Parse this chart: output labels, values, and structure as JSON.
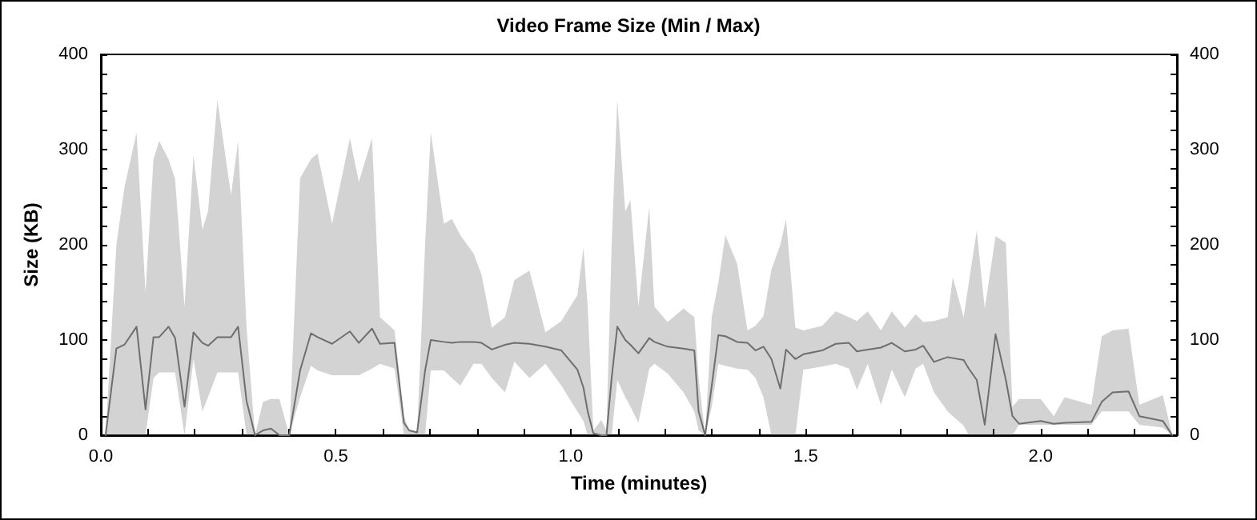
{
  "chart_data": {
    "type": "line",
    "title": "Video Frame Size (Min / Max)",
    "xlabel": "Time (minutes)",
    "ylabel": "Size (KB)",
    "xlim": [
      0,
      2.29
    ],
    "xticks": [
      {
        "value": 0,
        "label": "0.0"
      },
      {
        "value": 0.1,
        "label": null
      },
      {
        "value": 0.2,
        "label": null
      },
      {
        "value": 0.3,
        "label": null
      },
      {
        "value": 0.4,
        "label": null
      },
      {
        "value": 0.5,
        "label": "0.5"
      },
      {
        "value": 0.6,
        "label": null
      },
      {
        "value": 0.7,
        "label": null
      },
      {
        "value": 0.8,
        "label": null
      },
      {
        "value": 0.9,
        "label": null
      },
      {
        "value": 1,
        "label": "1.0"
      },
      {
        "value": 1.1,
        "label": null
      },
      {
        "value": 1.2,
        "label": null
      },
      {
        "value": 1.3,
        "label": null
      },
      {
        "value": 1.4,
        "label": null
      },
      {
        "value": 1.5,
        "label": "1.5"
      },
      {
        "value": 1.6,
        "label": null
      },
      {
        "value": 1.7,
        "label": null
      },
      {
        "value": 1.8,
        "label": null
      },
      {
        "value": 1.9,
        "label": null
      },
      {
        "value": 2,
        "label": "2.0"
      },
      {
        "value": 2.1,
        "label": null
      },
      {
        "value": 2.2,
        "label": null
      }
    ],
    "ylim": [
      0,
      400
    ],
    "yticks": [
      0,
      {
        "value": 20,
        "label": null
      },
      {
        "value": 40,
        "label": null
      },
      {
        "value": 60,
        "label": null
      },
      {
        "value": 80,
        "label": null
      },
      100,
      {
        "value": 120,
        "label": null
      },
      {
        "value": 140,
        "label": null
      },
      {
        "value": 160,
        "label": null
      },
      {
        "value": 180,
        "label": null
      },
      200,
      {
        "value": 220,
        "label": null
      },
      {
        "value": 240,
        "label": null
      },
      {
        "value": 260,
        "label": null
      },
      {
        "value": 280,
        "label": null
      },
      300,
      {
        "value": 320,
        "label": null
      },
      {
        "value": 340,
        "label": null
      },
      {
        "value": 360,
        "label": null
      },
      {
        "value": 380,
        "label": null
      },
      400
    ],
    "y2lim": [
      0,
      400
    ],
    "y2ticks": [
      0,
      {
        "value": 20,
        "label": null
      },
      {
        "value": 40,
        "label": null
      },
      {
        "value": 60,
        "label": null
      },
      {
        "value": 80,
        "label": null
      },
      100,
      {
        "value": 120,
        "label": null
      },
      {
        "value": 140,
        "label": null
      },
      {
        "value": 160,
        "label": null
      },
      {
        "value": 180,
        "label": null
      },
      200,
      {
        "value": 220,
        "label": null
      },
      {
        "value": 240,
        "label": null
      },
      {
        "value": 260,
        "label": null
      },
      {
        "value": 280,
        "label": null
      },
      300,
      {
        "value": 320,
        "label": null
      },
      {
        "value": 340,
        "label": null
      },
      {
        "value": 360,
        "label": null
      },
      {
        "value": 380,
        "label": null
      },
      400
    ],
    "grid": false,
    "marker": "none",
    "line_style": "solid",
    "series": [
      {
        "color": "#6e6e6e",
        "x": [
          0.01,
          0.033,
          0.05,
          0.076,
          0.095,
          0.112,
          0.124,
          0.144,
          0.158,
          0.178,
          0.197,
          0.216,
          0.228,
          0.248,
          0.277,
          0.292,
          0.31,
          0.328,
          0.345,
          0.362,
          0.38,
          0.401,
          0.424,
          0.447,
          0.461,
          0.492,
          0.53,
          0.549,
          0.577,
          0.594,
          0.625,
          0.645,
          0.656,
          0.673,
          0.69,
          0.702,
          0.73,
          0.747,
          0.765,
          0.793,
          0.81,
          0.832,
          0.86,
          0.88,
          0.912,
          0.946,
          0.98,
          1.014,
          1.027,
          1.036,
          1.048,
          1.065,
          1.076,
          1.087,
          1.099,
          1.116,
          1.127,
          1.144,
          1.167,
          1.178,
          1.206,
          1.24,
          1.263,
          1.272,
          1.286,
          1.3,
          1.314,
          1.329,
          1.354,
          1.376,
          1.393,
          1.41,
          1.427,
          1.446,
          1.458,
          1.478,
          1.495,
          1.535,
          1.564,
          1.592,
          1.609,
          1.632,
          1.66,
          1.683,
          1.711,
          1.734,
          1.75,
          1.773,
          1.802,
          1.813,
          1.836,
          1.847,
          1.864,
          1.881,
          1.904,
          1.926,
          1.94,
          1.954,
          2.0,
          2.028,
          2.051,
          2.108,
          2.13,
          2.153,
          2.187,
          2.21,
          2.26,
          2.28
        ],
        "values": [
          0,
          91,
          95,
          114,
          27,
          103,
          103,
          114,
          102,
          30,
          108,
          97,
          94,
          103,
          103,
          114,
          36,
          0,
          5,
          7,
          0,
          0,
          68,
          107,
          103,
          96,
          109,
          97,
          112,
          96,
          97,
          13,
          5,
          3,
          68,
          100,
          98,
          97,
          98,
          98,
          97,
          90,
          95,
          97,
          96,
          93,
          89,
          69,
          50,
          25,
          2,
          0,
          0,
          60,
          114,
          100,
          95,
          86,
          102,
          98,
          93,
          91,
          89,
          25,
          0,
          52,
          105,
          104,
          98,
          97,
          89,
          93,
          80,
          49,
          90,
          80,
          85,
          89,
          96,
          97,
          88,
          90,
          92,
          97,
          88,
          90,
          94,
          77,
          82,
          81,
          79,
          70,
          58,
          11,
          106,
          58,
          20,
          12,
          15,
          12,
          13,
          14,
          35,
          45,
          46,
          20,
          15,
          0
        ],
        "lower": [
          0,
          0,
          0,
          0,
          0,
          60,
          66,
          66,
          66,
          0,
          80,
          25,
          40,
          66,
          66,
          66,
          0,
          0,
          0,
          0,
          0,
          0,
          40,
          73,
          68,
          63,
          63,
          63,
          70,
          75,
          70,
          0,
          0,
          0,
          0,
          68,
          68,
          60,
          52,
          75,
          75,
          60,
          45,
          77,
          60,
          75,
          52,
          25,
          15,
          0,
          0,
          0,
          0,
          0,
          58,
          40,
          30,
          13,
          70,
          75,
          65,
          45,
          25,
          5,
          0,
          30,
          75,
          73,
          70,
          69,
          60,
          40,
          0,
          0,
          0,
          0,
          69,
          72,
          75,
          70,
          48,
          75,
          32,
          69,
          40,
          70,
          75,
          45,
          25,
          20,
          10,
          0,
          0,
          0,
          0,
          0,
          0,
          11,
          11,
          11,
          11,
          11,
          25,
          25,
          25,
          11,
          8,
          0
        ],
        "upper": [
          0,
          200,
          260,
          318,
          150,
          290,
          309,
          290,
          269,
          135,
          294,
          216,
          235,
          352,
          252,
          309,
          113,
          0,
          35,
          38,
          38,
          0,
          270,
          290,
          296,
          222,
          312,
          266,
          312,
          124,
          110,
          20,
          5,
          3,
          200,
          318,
          222,
          227,
          210,
          191,
          169,
          113,
          124,
          163,
          173,
          108,
          120,
          147,
          197,
          135,
          5,
          16,
          5,
          200,
          352,
          235,
          247,
          135,
          240,
          135,
          119,
          133,
          124,
          60,
          0,
          124,
          160,
          210,
          180,
          110,
          115,
          125,
          174,
          200,
          227,
          113,
          110,
          115,
          130,
          124,
          120,
          130,
          110,
          130,
          113,
          127,
          119,
          120,
          124,
          166,
          124,
          160,
          215,
          133,
          209,
          202,
          30,
          38,
          38,
          20,
          40,
          32,
          104,
          110,
          112,
          32,
          42,
          0
        ]
      }
    ]
  }
}
